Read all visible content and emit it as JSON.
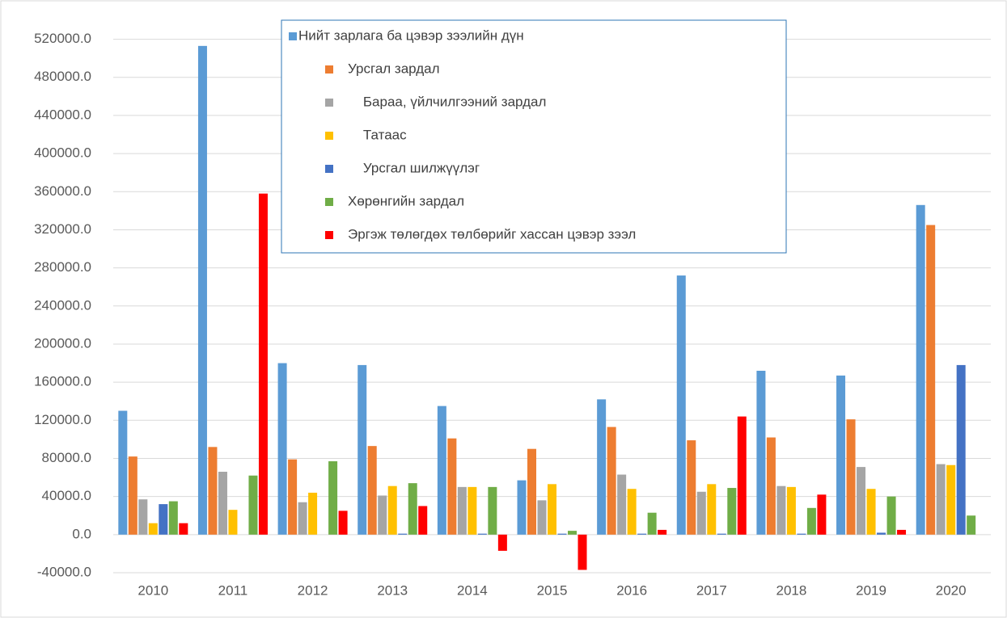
{
  "chart_data": {
    "type": "bar",
    "categories": [
      "2010",
      "2011",
      "2012",
      "2013",
      "2014",
      "2015",
      "2016",
      "2017",
      "2018",
      "2019",
      "2020"
    ],
    "series": [
      {
        "name": "Нийт зарлага ба цэвэр зээлийн дүн",
        "color": "#5b9bd5",
        "values": [
          130000,
          513000,
          180000,
          178000,
          135000,
          57000,
          142000,
          272000,
          172000,
          167000,
          346000
        ]
      },
      {
        "name": "Урсгал зардал",
        "color": "#ed7d31",
        "values": [
          82000,
          92000,
          79000,
          93000,
          101000,
          90000,
          113000,
          99000,
          102000,
          121000,
          325000
        ]
      },
      {
        "name": "    Бараа, үйлчилгээний зардал",
        "color": "#a5a5a5",
        "values": [
          37000,
          66000,
          34000,
          41000,
          50000,
          36000,
          63000,
          45000,
          51000,
          71000,
          74000
        ]
      },
      {
        "name": "    Татаас",
        "color": "#ffc000",
        "values": [
          12000,
          26000,
          44000,
          51000,
          50000,
          53000,
          48000,
          53000,
          50000,
          48000,
          73000
        ]
      },
      {
        "name": "    Урсгал шилжүүлэг",
        "color": "#4472c4",
        "values": [
          32000,
          0,
          0,
          1000,
          1000,
          1000,
          1000,
          1000,
          1000,
          2000,
          178000
        ]
      },
      {
        "name": "Хөрөнгийн зардал",
        "color": "#70ad47",
        "values": [
          35000,
          62000,
          77000,
          54000,
          50000,
          4000,
          23000,
          49000,
          28000,
          40000,
          20000
        ]
      },
      {
        "name": "Эргэж төлөгдөх төлбөрийг хассан цэвэр зээл",
        "color": "#ff0000",
        "values": [
          12000,
          358000,
          25000,
          30000,
          -17000,
          -37000,
          5000,
          124000,
          42000,
          5000,
          0
        ]
      }
    ],
    "ylim": [
      -40000,
      540000
    ],
    "yticks": [
      {
        "value": -40000,
        "label": "-40000.0"
      },
      {
        "value": 0,
        "label": "0.0"
      },
      {
        "value": 40000,
        "label": "40000.0"
      },
      {
        "value": 80000,
        "label": "80000.0"
      },
      {
        "value": 120000,
        "label": "120000.0"
      },
      {
        "value": 160000,
        "label": "160000.0"
      },
      {
        "value": 200000,
        "label": "200000.0"
      },
      {
        "value": 240000,
        "label": "240000.0"
      },
      {
        "value": 280000,
        "label": "280000.0"
      },
      {
        "value": 320000,
        "label": "320000.0"
      },
      {
        "value": 360000,
        "label": "360000.0"
      },
      {
        "value": 400000,
        "label": "400000.0"
      },
      {
        "value": 440000,
        "label": "440000.0"
      },
      {
        "value": 480000,
        "label": "480000.0"
      },
      {
        "value": 520000,
        "label": "520000.0"
      }
    ],
    "grid": true
  }
}
